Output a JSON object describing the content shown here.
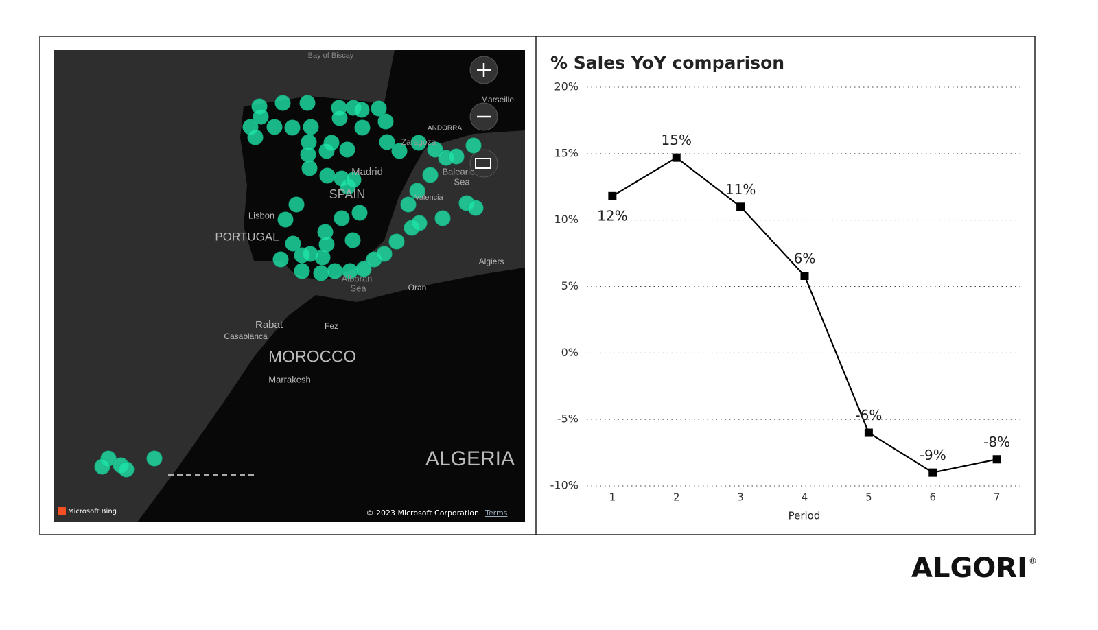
{
  "map": {
    "labels": [
      "Bay of Biscay",
      "Marseille",
      "ANDORRA",
      "Zaragoza",
      "Madrid",
      "SPAIN",
      "Lisbon",
      "PORTUGAL",
      "Balearic",
      "Sea",
      "Valencia",
      "Algiers",
      "Alboran",
      "Sea",
      "Oran",
      "Rabat",
      "Casablanca",
      "Fez",
      "MOROCCO",
      "Marrakesh",
      "ALGERIA"
    ],
    "attribution": {
      "brand": "Microsoft Bing",
      "copyright": "© 2023 Microsoft Corporation",
      "terms": "Terms"
    }
  },
  "chart_data": {
    "type": "line",
    "title": "% Sales YoY comparison",
    "x_label": "Period",
    "x": [
      1,
      2,
      3,
      4,
      5,
      6,
      7
    ],
    "xlim": [
      0.6,
      7.4
    ],
    "xticks": [
      1,
      2,
      3,
      4,
      5,
      6,
      7
    ],
    "series": [
      {
        "name": "% Sales YoY",
        "color": "#000000",
        "values": [
          11.8,
          14.7,
          11,
          5.8,
          -6,
          -9,
          -8
        ],
        "value_labels": [
          "12%",
          "15%",
          "11%",
          "6%",
          "-6%",
          "-9%",
          "-8%"
        ]
      }
    ],
    "ylim": [
      -10,
      20
    ],
    "yticks": [
      {
        "value": -10,
        "label": "-10%"
      },
      {
        "value": -5,
        "label": "-5%"
      },
      {
        "value": 0,
        "label": "0%"
      },
      {
        "value": 5,
        "label": "5%"
      },
      {
        "value": 10,
        "label": "10%"
      },
      {
        "value": 15,
        "label": "15%"
      },
      {
        "value": 20,
        "label": "20%"
      }
    ],
    "grid": true
  },
  "logo": {
    "text": "ALGORI",
    "mark": "®"
  }
}
